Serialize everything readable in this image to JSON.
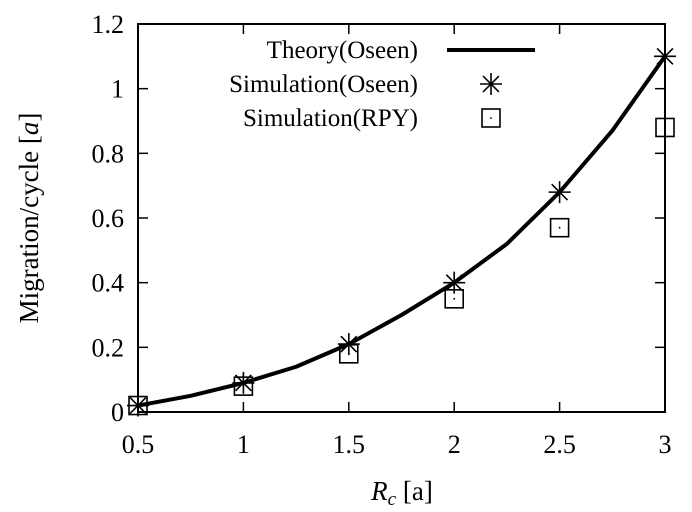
{
  "chart_data": {
    "type": "line",
    "xlabel_prefix": "R",
    "xlabel_subscript": "c",
    "xlabel_suffix": " [a]",
    "ylabel_prefix": "Migration/cycle [",
    "ylabel_unit": "a",
    "ylabel_suffix": "]",
    "xlim": [
      0.5,
      3
    ],
    "ylim": [
      0,
      1.2
    ],
    "xticks": [
      "0.5",
      "1",
      "1.5",
      "2",
      "2.5",
      "3"
    ],
    "yticks": [
      "0",
      "0.2",
      "0.4",
      "0.6",
      "0.8",
      "1",
      "1.2"
    ],
    "legend_position": "top-left",
    "series": [
      {
        "name": "Theory(Oseen)",
        "style": "line",
        "x": [
          0.5,
          0.75,
          1.0,
          1.25,
          1.5,
          1.75,
          2.0,
          2.25,
          2.5,
          2.75,
          3.0
        ],
        "y": [
          0.02,
          0.05,
          0.09,
          0.14,
          0.21,
          0.3,
          0.4,
          0.52,
          0.68,
          0.87,
          1.1
        ]
      },
      {
        "name": "Simulation(Oseen)",
        "style": "star",
        "x": [
          0.5,
          1.0,
          1.5,
          2.0,
          2.5,
          3.0
        ],
        "y": [
          0.02,
          0.09,
          0.21,
          0.4,
          0.68,
          1.1
        ]
      },
      {
        "name": "Simulation(RPY)",
        "style": "open-square",
        "x": [
          0.5,
          1.0,
          1.5,
          2.0,
          2.5,
          3.0
        ],
        "y": [
          0.02,
          0.08,
          0.18,
          0.35,
          0.57,
          0.88
        ]
      }
    ]
  }
}
